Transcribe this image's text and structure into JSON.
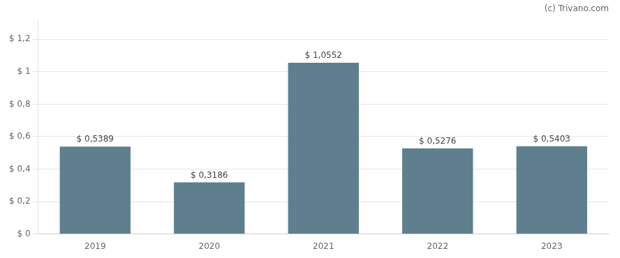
{
  "chart_data": {
    "type": "bar",
    "annotation": "(c) Trivano.com",
    "categories": [
      "2019",
      "2020",
      "2021",
      "2022",
      "2023"
    ],
    "values": [
      0.5389,
      0.3186,
      1.0552,
      0.5276,
      0.5403
    ],
    "value_labels": [
      "$ 0,5389",
      "$ 0,3186",
      "$ 1,0552",
      "$ 0,5276",
      "$ 0,5403"
    ],
    "color": "#5f7f8f",
    "ylim": [
      0,
      1.32
    ],
    "yticks": [
      {
        "value": 0,
        "label": "$ 0"
      },
      {
        "value": 0.2,
        "label": "$ 0,2"
      },
      {
        "value": 0.4,
        "label": "$ 0,4"
      },
      {
        "value": 0.6,
        "label": "$ 0,6"
      },
      {
        "value": 0.8,
        "label": "$ 0,8"
      },
      {
        "value": 1.0,
        "label": "$ 1"
      },
      {
        "value": 1.2,
        "label": "$ 1,2"
      }
    ],
    "grid": true,
    "data_labels": true
  }
}
